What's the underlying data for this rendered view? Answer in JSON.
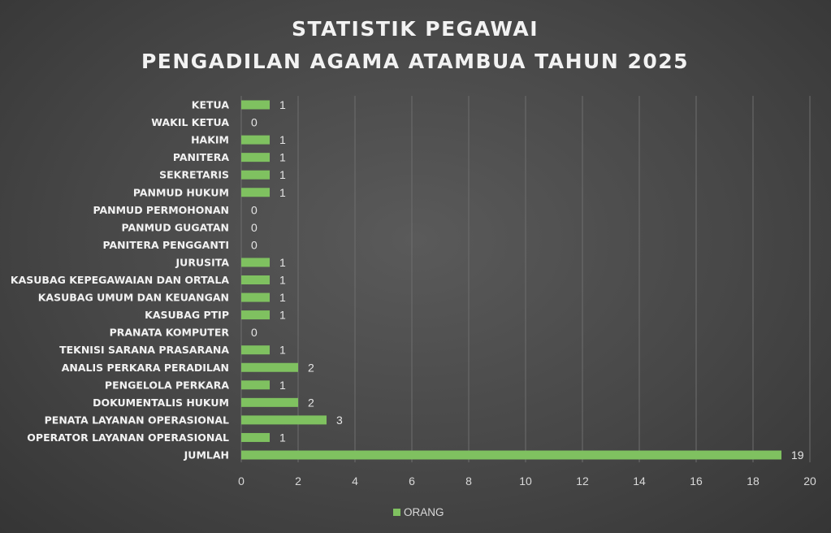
{
  "chart_data": {
    "type": "bar",
    "orientation": "horizontal",
    "title": [
      "STATISTIK PEGAWAI",
      "PENGADILAN AGAMA ATAMBUA TAHUN 2025"
    ],
    "categories": [
      "KETUA",
      "WAKIL KETUA",
      "HAKIM",
      "PANITERA",
      "SEKRETARIS",
      "PANMUD HUKUM",
      "PANMUD PERMOHONAN",
      "PANMUD GUGATAN",
      "PANITERA PENGGANTI",
      "JURUSITA",
      "KASUBAG  KEPEGAWAIAN DAN ORTALA",
      "KASUBAG  UMUM DAN KEUANGAN",
      "KASUBAG PTIP",
      "PRANATA KOMPUTER",
      "TEKNISI SARANA PRASARANA",
      "ANALIS PERKARA PERADILAN",
      "PENGELOLA PERKARA",
      "DOKUMENTALIS HUKUM",
      "PENATA LAYANAN OPERASIONAL",
      "OPERATOR LAYANAN OPERASIONAL",
      "JUMLAH"
    ],
    "series": [
      {
        "name": "ORANG",
        "color": "#7fc160",
        "values": [
          1,
          0,
          1,
          1,
          1,
          1,
          0,
          0,
          0,
          1,
          1,
          1,
          1,
          0,
          1,
          2,
          1,
          2,
          3,
          1,
          19
        ]
      }
    ],
    "xlim": [
      0,
      20
    ],
    "xticks": [
      0,
      2,
      4,
      6,
      8,
      10,
      12,
      14,
      16,
      18,
      20
    ],
    "grid": true,
    "legend": "bottom",
    "data_labels": true
  }
}
